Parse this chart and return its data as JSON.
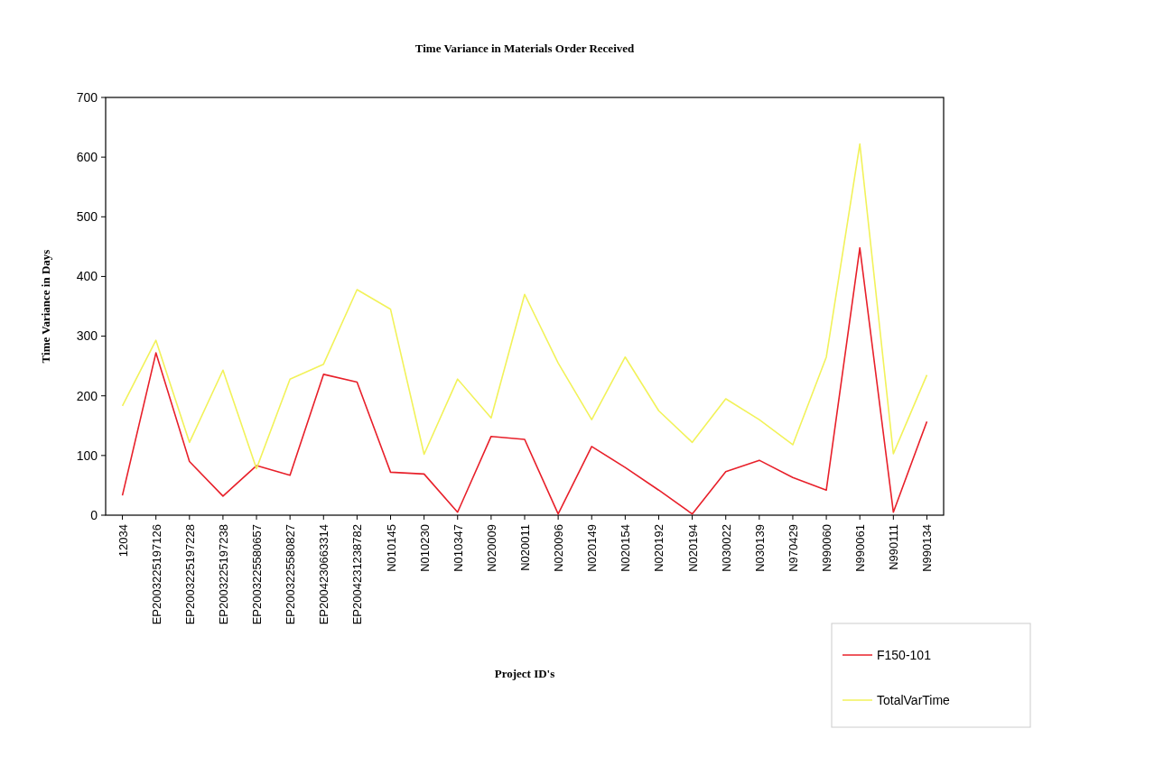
{
  "chart_data": {
    "type": "line",
    "title": "Time Variance in Materials Order Received",
    "xlabel": "Project ID's",
    "ylabel": "Time Variance in Days",
    "categories": [
      "12034",
      "EP2003225197126",
      "EP2003225197228",
      "EP2003225197238",
      "EP2003225580657",
      "EP2003225580827",
      "EP2004230663314",
      "EP2004231238782",
      "N010145",
      "N010230",
      "N010347",
      "N020009",
      "N020011",
      "N020096",
      "N020149",
      "N020154",
      "N020192",
      "N020194",
      "N030022",
      "N030139",
      "N970429",
      "N990060",
      "N990061",
      "N990111",
      "N990134"
    ],
    "series": [
      {
        "name": "F150-101",
        "color": "#e8202a",
        "values": [
          33,
          272,
          90,
          32,
          83,
          67,
          236,
          223,
          72,
          69,
          5,
          132,
          127,
          2,
          115,
          80,
          42,
          2,
          73,
          92,
          63,
          42,
          448,
          5,
          157
        ]
      },
      {
        "name": "TotalVarTime",
        "color": "#f2f25a",
        "values": [
          183,
          293,
          122,
          243,
          78,
          228,
          253,
          378,
          345,
          102,
          228,
          163,
          370,
          255,
          160,
          265,
          175,
          122,
          195,
          160,
          118,
          265,
          622,
          103,
          235
        ]
      }
    ],
    "ylim": [
      0,
      700
    ],
    "yticks": [
      0,
      100,
      200,
      300,
      400,
      500,
      600,
      700
    ],
    "grid": false,
    "legend": "bottom right",
    "marker": "none",
    "line_style": "solid"
  }
}
